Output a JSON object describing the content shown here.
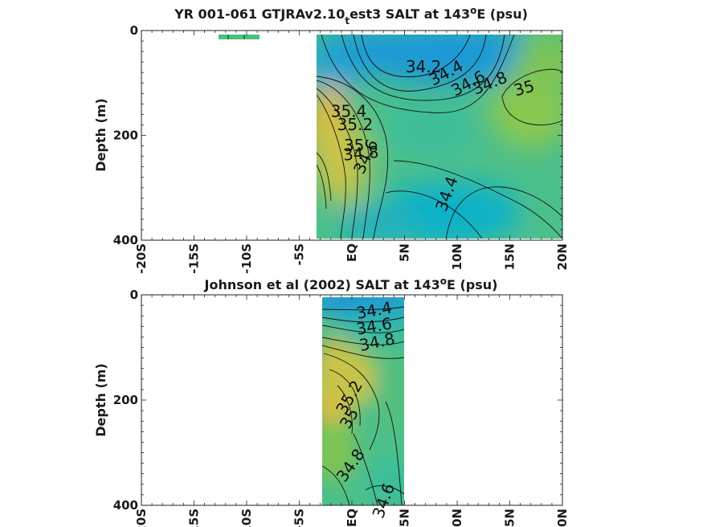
{
  "chart_data": [
    {
      "type": "contour",
      "title_main": "YR 001-061 GTJRAv2.10",
      "title_sub": "t",
      "title_rest": "est3 SALT at 143",
      "title_sup": "o",
      "title_end": "E (psu)",
      "ylabel": "Depth (m)",
      "xlim": [
        -20,
        20
      ],
      "ylim": [
        400,
        0
      ],
      "x_ticks": [
        -20,
        -15,
        -10,
        -5,
        0,
        5,
        10,
        15,
        20
      ],
      "x_tick_labels": [
        "-20S",
        "-15S",
        "-10S",
        "-5S",
        "EQ",
        "5N",
        "10N",
        "15N",
        "20N"
      ],
      "y_ticks": [
        0,
        200,
        400
      ],
      "y_tick_labels": [
        "0",
        "200",
        "400"
      ],
      "data_extent_lat": [
        -3.3,
        20
      ],
      "isolated_strip_lat": [
        -12.5,
        -8.5
      ],
      "contour_labels": [
        {
          "text": "34.2",
          "lat": 6.8,
          "depth": 80
        },
        {
          "text": "34.4",
          "lat": 9.2,
          "depth": 90
        },
        {
          "text": "34.6",
          "lat": 11.3,
          "depth": 110
        },
        {
          "text": "34.8",
          "lat": 13.3,
          "depth": 110
        },
        {
          "text": "35",
          "lat": 16.5,
          "depth": 120
        },
        {
          "text": "35.4",
          "lat": -0.3,
          "depth": 165
        },
        {
          "text": "35.2",
          "lat": 0.3,
          "depth": 190
        },
        {
          "text": "35",
          "lat": 0.2,
          "depth": 230
        },
        {
          "text": "34.8",
          "lat": 0.9,
          "depth": 245
        },
        {
          "text": "34.6",
          "lat": 1.8,
          "depth": 245
        },
        {
          "text": "34.4",
          "lat": 9.5,
          "depth": 315
        }
      ]
    },
    {
      "type": "contour",
      "title_main": "Johnson et al (2002) SALT at 143",
      "title_sup": "o",
      "title_end": "E (psu)",
      "ylabel": "Depth (m)",
      "xlim": [
        -20,
        20
      ],
      "ylim": [
        400,
        0
      ],
      "x_ticks": [
        -20,
        -15,
        -10,
        -5,
        0,
        5,
        10,
        15,
        20
      ],
      "x_tick_labels": [
        "-20S",
        "-15S",
        "-10S",
        "-5S",
        "EQ",
        "5N",
        "10N",
        "15N",
        "20N"
      ],
      "y_ticks": [
        0,
        200,
        400
      ],
      "y_tick_labels": [
        "0",
        "200",
        "400"
      ],
      "data_extent_lat": [
        -2.8,
        5
      ],
      "contour_labels": [
        {
          "text": "34.4",
          "lat": 2.2,
          "depth": 40
        },
        {
          "text": "34.6",
          "lat": 2.2,
          "depth": 70
        },
        {
          "text": "34.8",
          "lat": 2.5,
          "depth": 100
        },
        {
          "text": "35.2",
          "lat": 0.2,
          "depth": 200
        },
        {
          "text": "35",
          "lat": 0.2,
          "depth": 240
        },
        {
          "text": "34.8",
          "lat": 0.3,
          "depth": 330
        },
        {
          "text": "34.6",
          "lat": 3.5,
          "depth": 395
        }
      ]
    }
  ]
}
